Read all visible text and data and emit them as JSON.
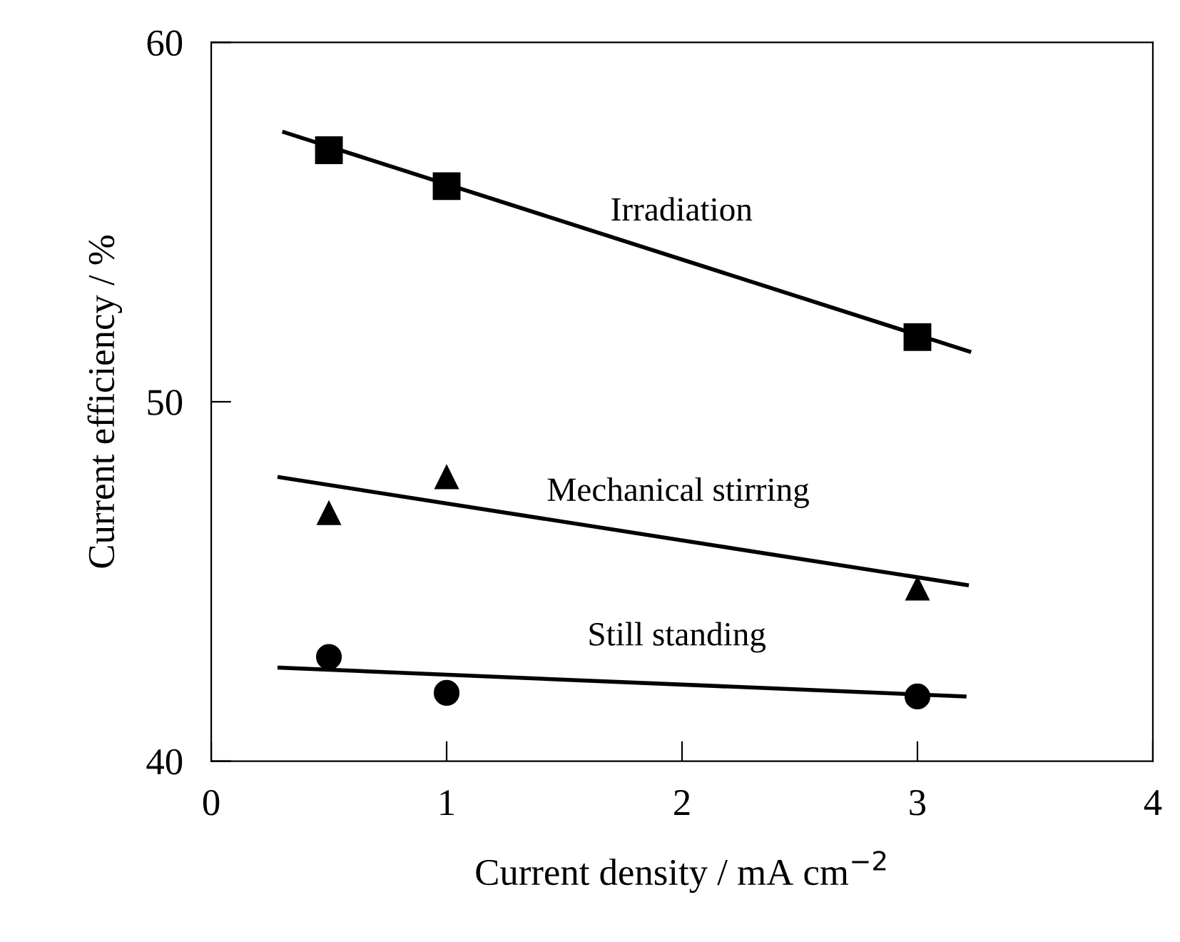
{
  "chart_data": {
    "type": "scatter",
    "xlabel": "Current density / mA cm$^{−2}$",
    "ylabel": "Current efficiency / %",
    "xlim": [
      0,
      4
    ],
    "ylim": [
      40,
      60
    ],
    "xticks": [
      0,
      1,
      2,
      3,
      4
    ],
    "yticks": [
      40,
      50,
      60
    ],
    "grid": false,
    "legend": false,
    "series": [
      {
        "marker": "square",
        "color": "#000000",
        "x": [
          0.5,
          1,
          3
        ],
        "values": [
          57.0,
          56.0,
          51.8
        ]
      },
      {
        "marker": "triangle",
        "color": "#000000",
        "x": [
          0.5,
          1,
          3
        ],
        "values": [
          46.9,
          47.9,
          44.8
        ]
      },
      {
        "marker": "circle",
        "color": "#000000",
        "x": [
          0.5,
          1,
          3
        ],
        "values": [
          42.9,
          41.9,
          41.8
        ]
      },
      {
        "type": "line",
        "name": "Irradiation",
        "marker": "none",
        "line_style": "solid",
        "color": "#000000",
        "x": [
          0.31,
          3.22
        ],
        "values": [
          57.5,
          51.4
        ]
      },
      {
        "type": "line",
        "name": "Mechanical stirring",
        "marker": "none",
        "line_style": "solid",
        "color": "#000000",
        "x": [
          0.29,
          3.21
        ],
        "values": [
          47.9,
          44.9
        ]
      },
      {
        "type": "line",
        "name": "Still standing",
        "marker": "none",
        "line_style": "solid",
        "color": "#000000",
        "x": [
          0.29,
          3.2
        ],
        "values": [
          42.6,
          41.8
        ]
      }
    ]
  }
}
